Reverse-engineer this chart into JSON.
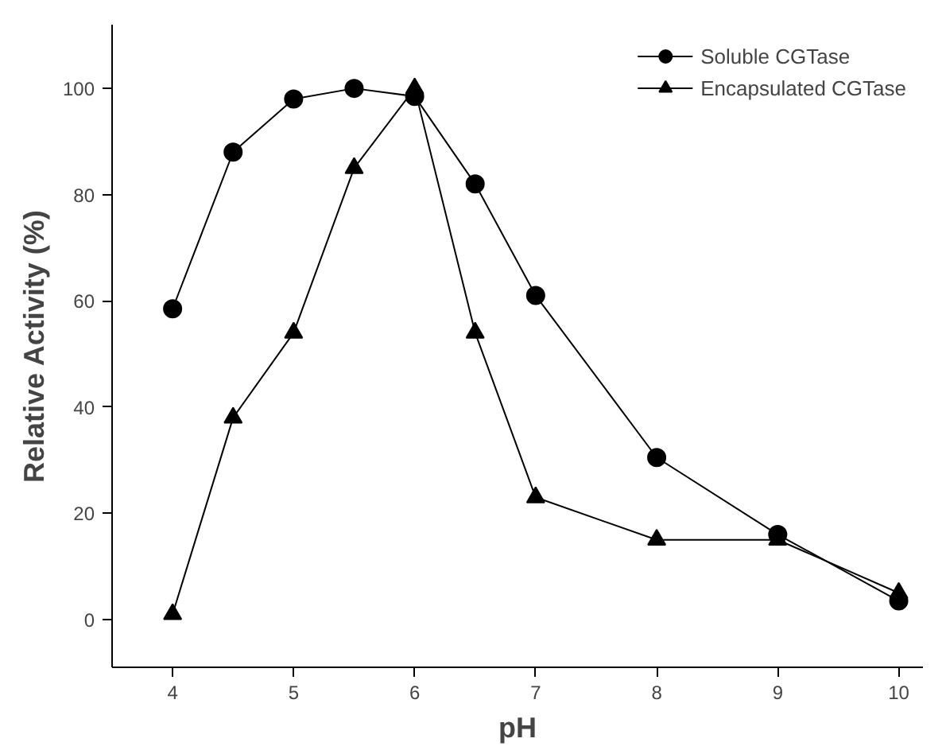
{
  "chart_data": {
    "type": "line",
    "xlabel": "pH",
    "ylabel": "Relative Activity (%)",
    "xlim": [
      3.5,
      10.2
    ],
    "ylim": [
      -9,
      112
    ],
    "xticks": [
      4,
      5,
      6,
      7,
      8,
      9,
      10
    ],
    "yticks": [
      0,
      20,
      40,
      60,
      80,
      100
    ],
    "grid": false,
    "legend": "top right",
    "series": [
      {
        "name": "Soluble CGTase",
        "color": "#000000",
        "marker": "circle",
        "x": [
          4,
          4.5,
          5,
          5.5,
          6,
          6.5,
          7,
          8,
          9,
          10
        ],
        "values": [
          58.5,
          88,
          98,
          100,
          98.5,
          82,
          61,
          30.5,
          16,
          3.5
        ]
      },
      {
        "name": "Encapsulated CGTase",
        "color": "#000000",
        "marker": "triangle",
        "x": [
          4,
          4.5,
          5,
          5.5,
          6,
          6.5,
          7,
          8,
          9,
          10
        ],
        "values": [
          1,
          38,
          54,
          85,
          100,
          54,
          23,
          15,
          15,
          5
        ]
      }
    ]
  }
}
